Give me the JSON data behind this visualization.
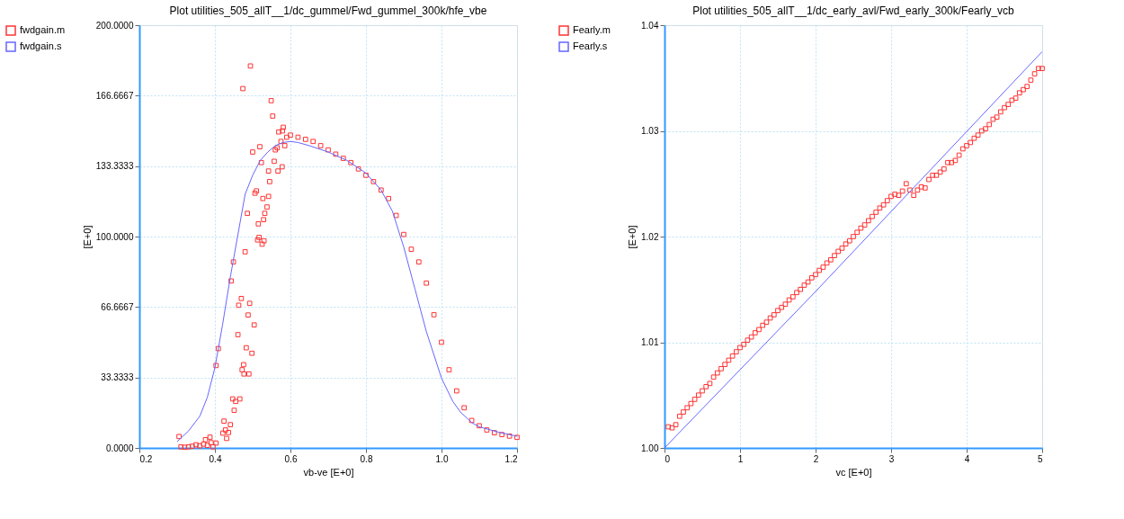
{
  "chart_data": [
    {
      "type": "scatter",
      "title": "Plot utilities_505_allT__1/dc_gummel/Fwd_gummel_300k/hfe_vbe",
      "xlabel": "vb-ve  [E+0]",
      "ylabel": "[E+0]",
      "xlim": [
        0.2,
        1.2
      ],
      "ylim": [
        0,
        200
      ],
      "xticks": [
        {
          "value": 0.2,
          "label": "0.2"
        },
        {
          "value": 0.4,
          "label": "0.4"
        },
        {
          "value": 0.6,
          "label": "0.6"
        },
        {
          "value": 0.8,
          "label": "0.8"
        },
        {
          "value": 1.0,
          "label": "1.0"
        },
        {
          "value": 1.2,
          "label": "1.2"
        }
      ],
      "yticks": [
        {
          "value": 0,
          "label": "0.0000"
        },
        {
          "value": 33.3333,
          "label": "33.3333"
        },
        {
          "value": 66.6667,
          "label": "66.6667"
        },
        {
          "value": 100,
          "label": "100.0000"
        },
        {
          "value": 133.3333,
          "label": "133.3333"
        },
        {
          "value": 166.6667,
          "label": "166.6667"
        },
        {
          "value": 200,
          "label": "200.0000"
        }
      ],
      "grid": true,
      "legend": "left",
      "series": [
        {
          "name": "fwdgain.m",
          "marker": "square",
          "color": "#ff3333",
          "x": [
            0.305,
            0.31,
            0.32,
            0.33,
            0.34,
            0.35,
            0.36,
            0.37,
            0.375,
            0.38,
            0.387,
            0.39,
            0.395,
            0.403,
            0.403,
            0.409,
            0.421,
            0.424,
            0.428,
            0.431,
            0.436,
            0.441,
            0.443,
            0.447,
            0.449,
            0.451,
            0.455,
            0.461,
            0.463,
            0.466,
            0.47,
            0.472,
            0.474,
            0.476,
            0.477,
            0.48,
            0.483,
            0.486,
            0.488,
            0.49,
            0.492,
            0.494,
            0.498,
            0.5,
            0.504,
            0.506,
            0.51,
            0.513,
            0.515,
            0.517,
            0.519,
            0.523,
            0.525,
            0.527,
            0.529,
            0.53,
            0.532,
            0.538,
            0.542,
            0.542,
            0.545,
            0.549,
            0.553,
            0.557,
            0.56,
            0.565,
            0.567,
            0.569,
            0.575,
            0.578,
            0.579,
            0.581,
            0.585,
            0.59,
            0.6,
            0.62,
            0.64,
            0.66,
            0.68,
            0.7,
            0.72,
            0.74,
            0.76,
            0.78,
            0.8,
            0.82,
            0.84,
            0.86,
            0.88,
            0.9,
            0.92,
            0.94,
            0.96,
            0.98,
            1.0,
            1.02,
            1.04,
            1.06,
            1.08,
            1.1,
            1.12,
            1.14,
            1.16,
            1.18,
            1.2
          ],
          "values": [
            5.4,
            0.5,
            0.3,
            0.5,
            0.8,
            1.5,
            1.0,
            1.8,
            3.9,
            1.2,
            5.1,
            2.5,
            0.5,
            2.3,
            39,
            47,
            7,
            12.7,
            8.5,
            4.5,
            7.3,
            11,
            79,
            23.2,
            88,
            17.8,
            22,
            53.6,
            67.5,
            23.2,
            70.7,
            37,
            170,
            39.4,
            35,
            92.8,
            47.4,
            111,
            62.9,
            35,
            68.4,
            180.7,
            44.8,
            140,
            58.2,
            120.5,
            121.6,
            98.4,
            106,
            99.6,
            142.5,
            135,
            96.4,
            118,
            108,
            98,
            111,
            114,
            131,
            119,
            126,
            164.3,
            157,
            135.6,
            141,
            142,
            131,
            149.5,
            145,
            133,
            150,
            151.7,
            143,
            147,
            148,
            147,
            146,
            145,
            143,
            141,
            139,
            137,
            135,
            132,
            129,
            126,
            122,
            118,
            110,
            101,
            94,
            88,
            78,
            63,
            50,
            37,
            27,
            19,
            13,
            10.5,
            8.5,
            7.2,
            6.3,
            5.6,
            5
          ]
        },
        {
          "name": "fwdgain.s",
          "type": "line",
          "marker": "none",
          "color": "#6666ff",
          "x": [
            0.3,
            0.33,
            0.36,
            0.38,
            0.4,
            0.42,
            0.44,
            0.46,
            0.48,
            0.5,
            0.52,
            0.54,
            0.56,
            0.58,
            0.6,
            0.62,
            0.65,
            0.7,
            0.75,
            0.8,
            0.84,
            0.87,
            0.9,
            0.93,
            0.96,
            1.0,
            1.03,
            1.05,
            1.08,
            1.1,
            1.15,
            1.2
          ],
          "values": [
            3,
            8,
            15,
            24,
            38,
            58,
            80,
            100,
            120,
            129,
            136,
            140,
            143,
            144.5,
            145,
            144.5,
            143,
            140,
            136,
            130,
            122,
            112,
            95,
            75,
            55,
            33,
            22,
            17,
            12,
            10,
            7.5,
            5.5
          ]
        }
      ]
    },
    {
      "type": "scatter",
      "title": "Plot utilities_505_allT__1/dc_early_avl/Fwd_early_300k/Fearly_vcb",
      "xlabel": "vc  [E+0]",
      "ylabel": "[E+0]",
      "xlim": [
        0,
        5
      ],
      "ylim": [
        1.0,
        1.04
      ],
      "xticks": [
        0,
        1,
        2,
        3,
        4,
        5
      ],
      "yticks": [
        {
          "value": 1.0,
          "label": "1.00"
        },
        {
          "value": 1.01,
          "label": "1.01"
        },
        {
          "value": 1.02,
          "label": "1.02"
        },
        {
          "value": 1.03,
          "label": "1.03"
        },
        {
          "value": 1.04,
          "label": "1.04"
        }
      ],
      "grid": true,
      "legend": "left",
      "series": [
        {
          "name": "Fearly.m",
          "marker": "square",
          "color": "#ff3333",
          "x": [
            0.05,
            0.1,
            0.15,
            0.2,
            0.25,
            0.3,
            0.35,
            0.4,
            0.45,
            0.5,
            0.55,
            0.6,
            0.65,
            0.7,
            0.75,
            0.8,
            0.85,
            0.9,
            0.95,
            1.0,
            1.05,
            1.1,
            1.15,
            1.2,
            1.25,
            1.3,
            1.35,
            1.4,
            1.45,
            1.5,
            1.55,
            1.6,
            1.65,
            1.7,
            1.75,
            1.8,
            1.85,
            1.9,
            1.95,
            2.0,
            2.05,
            2.1,
            2.15,
            2.2,
            2.25,
            2.3,
            2.35,
            2.4,
            2.45,
            2.5,
            2.55,
            2.6,
            2.65,
            2.7,
            2.75,
            2.8,
            2.85,
            2.9,
            2.95,
            3.0,
            3.05,
            3.1,
            3.15,
            3.2,
            3.25,
            3.3,
            3.35,
            3.4,
            3.45,
            3.5,
            3.55,
            3.6,
            3.65,
            3.7,
            3.75,
            3.8,
            3.85,
            3.9,
            3.95,
            4.0,
            4.05,
            4.1,
            4.15,
            4.2,
            4.25,
            4.3,
            4.35,
            4.4,
            4.45,
            4.5,
            4.55,
            4.6,
            4.65,
            4.7,
            4.75,
            4.8,
            4.85,
            4.9,
            4.95,
            5.0
          ],
          "values": [
            1.002,
            1.0019,
            1.0022,
            1.003,
            1.0034,
            1.0038,
            1.0042,
            1.0046,
            1.005,
            1.0054,
            1.0058,
            1.0061,
            1.0067,
            1.0071,
            1.0075,
            1.0079,
            1.0083,
            1.0087,
            1.0091,
            1.0095,
            1.0098,
            1.0102,
            1.0105,
            1.0109,
            1.0112,
            1.0116,
            1.0119,
            1.0123,
            1.0126,
            1.013,
            1.0133,
            1.0136,
            1.014,
            1.0143,
            1.0147,
            1.015,
            1.0154,
            1.0157,
            1.0161,
            1.0164,
            1.0168,
            1.0171,
            1.0175,
            1.0178,
            1.0182,
            1.0186,
            1.0189,
            1.0193,
            1.0196,
            1.02,
            1.0204,
            1.0208,
            1.0211,
            1.0215,
            1.0219,
            1.0223,
            1.0227,
            1.023,
            1.0234,
            1.0238,
            1.024,
            1.0239,
            1.0243,
            1.025,
            1.0244,
            1.0239,
            1.0244,
            1.0247,
            1.0246,
            1.0254,
            1.0258,
            1.0258,
            1.0261,
            1.0264,
            1.027,
            1.027,
            1.0272,
            1.0277,
            1.0283,
            1.0286,
            1.0289,
            1.0293,
            1.0296,
            1.03,
            1.0302,
            1.0306,
            1.0311,
            1.0313,
            1.0318,
            1.0322,
            1.0325,
            1.0329,
            1.0331,
            1.0336,
            1.0339,
            1.0342,
            1.0348,
            1.0354,
            1.0359,
            1.0359
          ]
        },
        {
          "name": "Fearly.s",
          "type": "line",
          "marker": "none",
          "color": "#6666ff",
          "x": [
            0,
            2,
            5
          ],
          "values": [
            1.0,
            1.0148,
            1.0375
          ]
        }
      ]
    }
  ]
}
